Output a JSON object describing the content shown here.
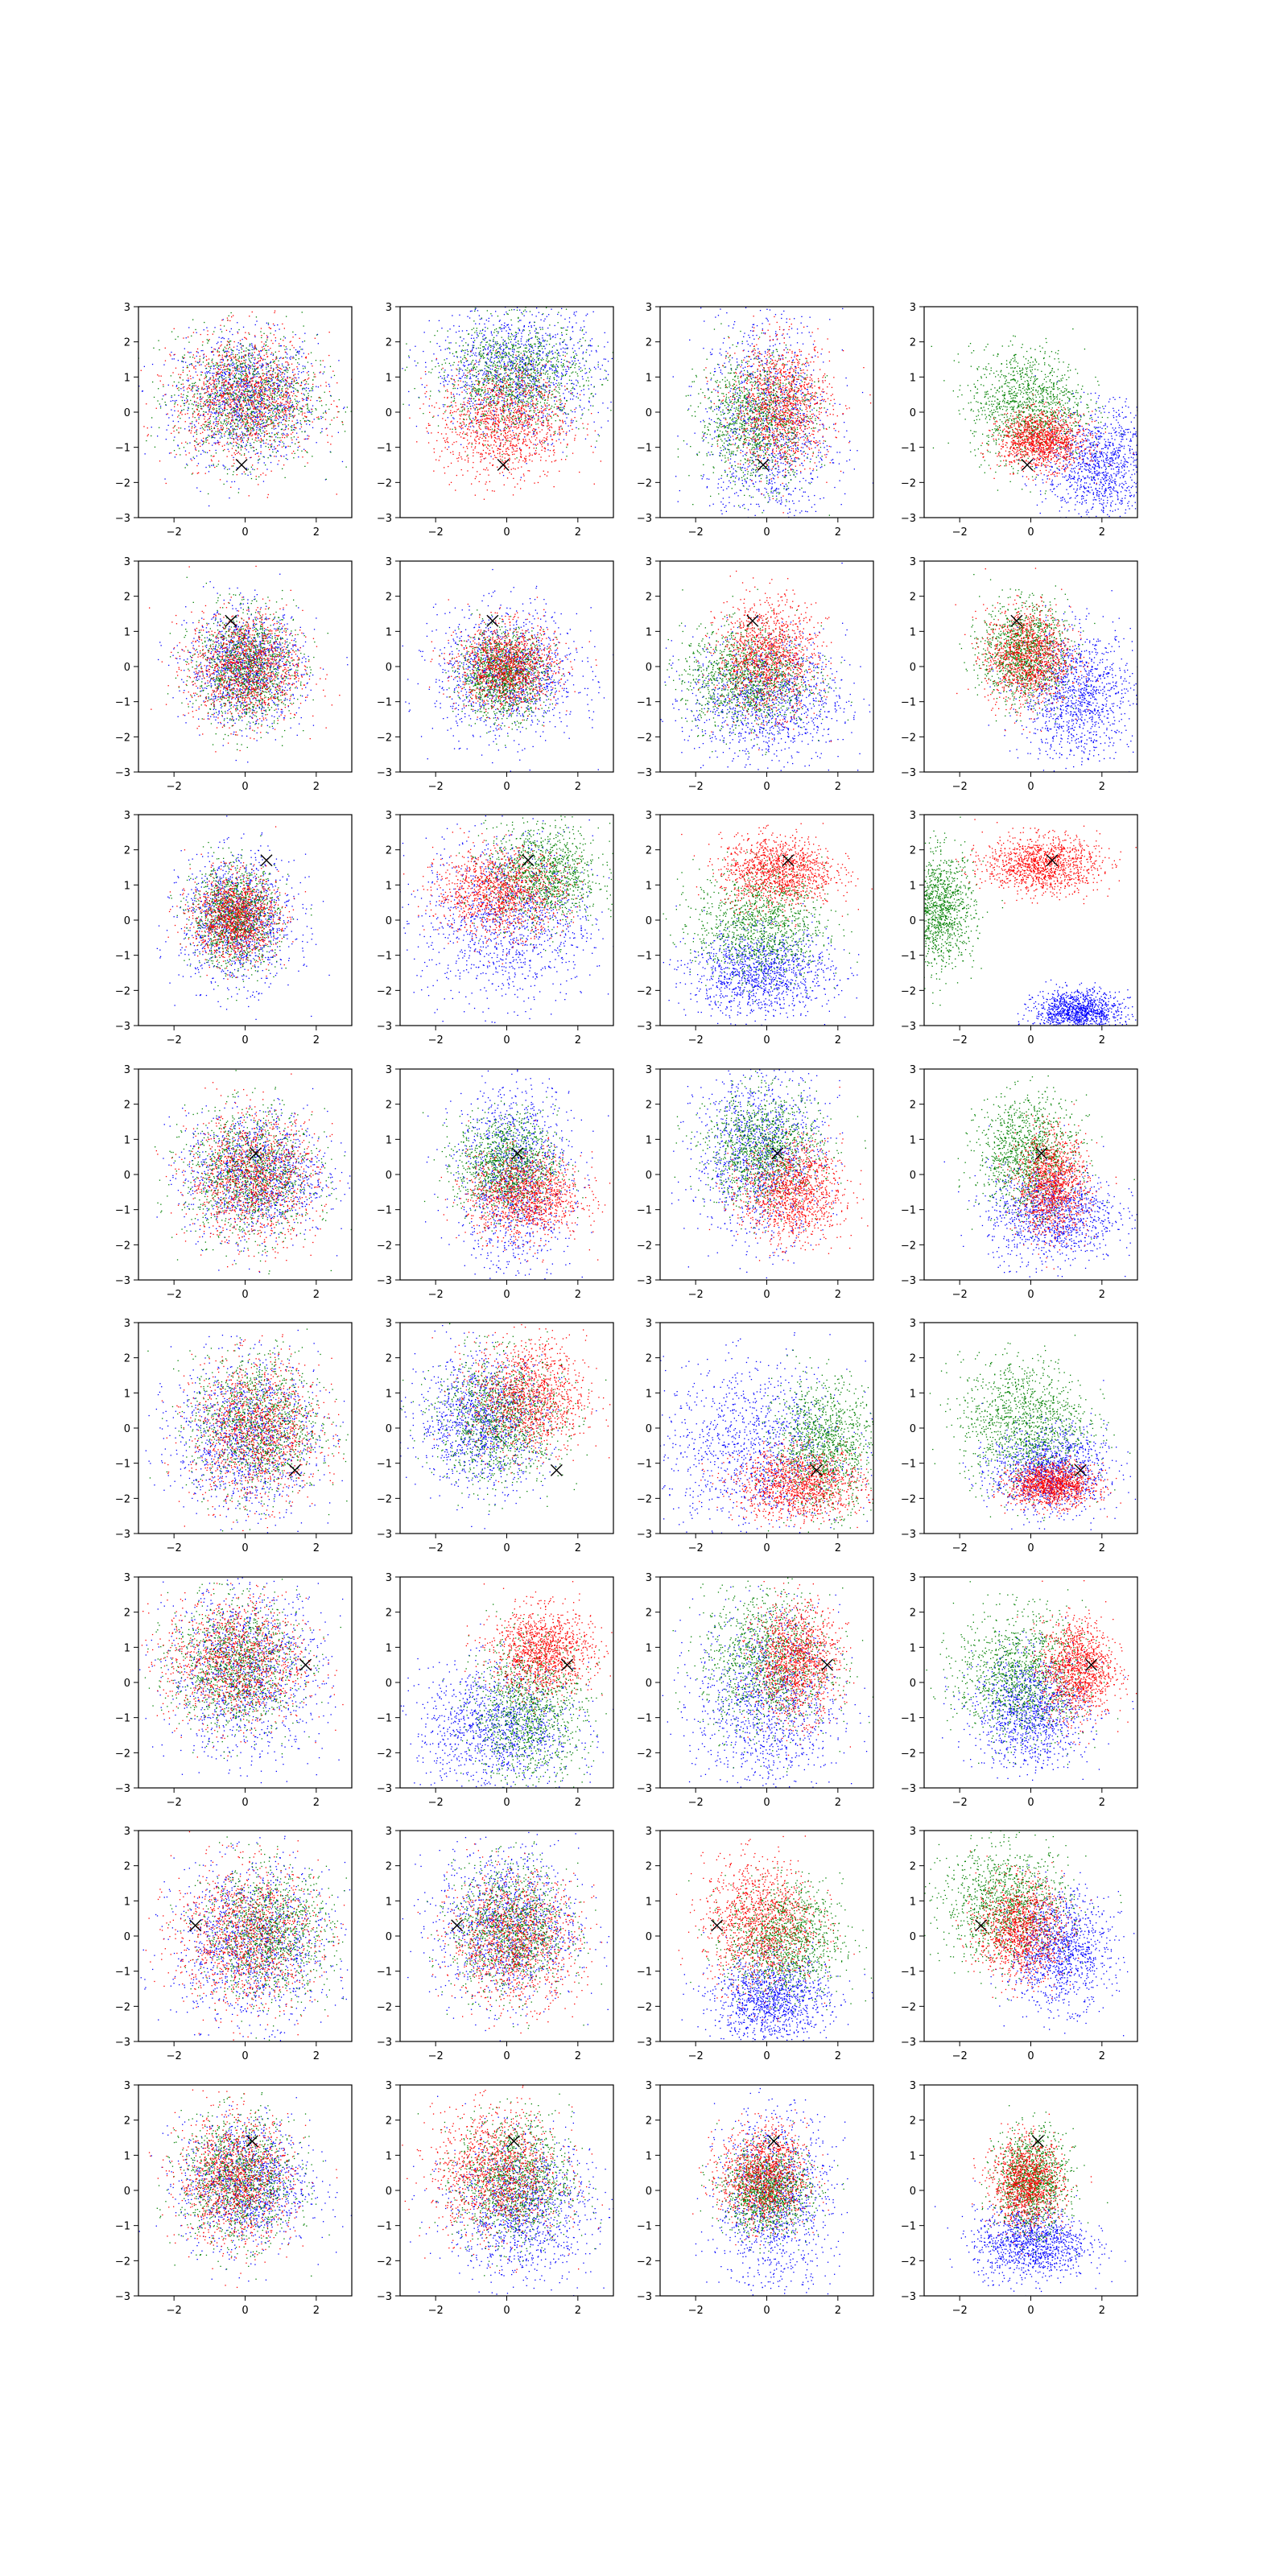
{
  "chart_data": {
    "type": "scatter",
    "layout": {
      "rows": 8,
      "cols": 4
    },
    "xlim": [
      -3,
      3
    ],
    "ylim": [
      -3,
      3
    ],
    "x_ticks": [
      -2,
      0,
      2
    ],
    "y_ticks": [
      -3,
      -2,
      -1,
      0,
      1,
      2,
      3
    ],
    "x_tick_labels": [
      "−2",
      "0",
      "2"
    ],
    "y_tick_labels": [
      "−3",
      "−2",
      "−1",
      "0",
      "1",
      "2",
      "3"
    ],
    "grid": false,
    "legend": "none",
    "series_colors": {
      "blue": "#0000ff",
      "green": "#008000",
      "red": "#ff0000"
    },
    "marker_symbol": "×",
    "points_per_series": 1200,
    "rows": [
      {
        "marker": [
          -0.1,
          -1.5
        ],
        "panels": [
          {
            "blue": [
              0.0,
              0.4,
              1.0,
              0.9
            ],
            "green": [
              0.0,
              0.4,
              1.0,
              0.9
            ],
            "red": [
              0.0,
              0.4,
              1.0,
              0.9
            ]
          },
          {
            "blue": [
              0.3,
              1.2,
              1.2,
              0.9
            ],
            "green": [
              0.2,
              1.0,
              1.0,
              0.8
            ],
            "red": [
              -0.1,
              -0.3,
              0.9,
              0.8
            ]
          },
          {
            "blue": [
              0.0,
              -0.4,
              0.9,
              1.6
            ],
            "green": [
              -0.3,
              -0.2,
              0.8,
              0.9
            ],
            "red": [
              0.4,
              0.2,
              0.7,
              0.9
            ]
          },
          {
            "blue": [
              2.0,
              -1.5,
              0.8,
              0.8
            ],
            "green": [
              -0.1,
              0.2,
              0.8,
              0.8
            ],
            "red": [
              0.3,
              -0.8,
              0.6,
              0.4
            ]
          }
        ]
      },
      {
        "marker": [
          -0.4,
          1.3
        ],
        "panels": [
          {
            "blue": [
              0.0,
              0.0,
              0.8,
              0.8
            ],
            "green": [
              0.0,
              0.0,
              0.7,
              0.8
            ],
            "red": [
              0.0,
              0.0,
              0.8,
              0.8
            ]
          },
          {
            "blue": [
              0.0,
              -0.2,
              1.0,
              0.9
            ],
            "green": [
              -0.1,
              -0.2,
              0.6,
              0.6
            ],
            "red": [
              0.0,
              0.0,
              0.7,
              0.6
            ]
          },
          {
            "blue": [
              0.0,
              -0.9,
              1.1,
              0.9
            ],
            "green": [
              -0.6,
              -0.3,
              0.9,
              0.7
            ],
            "red": [
              0.0,
              0.3,
              0.7,
              0.8
            ]
          },
          {
            "blue": [
              1.3,
              -0.8,
              0.8,
              0.9
            ],
            "green": [
              -0.2,
              0.4,
              0.6,
              0.7
            ],
            "red": [
              -0.1,
              0.3,
              0.6,
              0.7
            ]
          }
        ]
      },
      {
        "marker": [
          0.6,
          1.7
        ],
        "panels": [
          {
            "blue": [
              -0.2,
              0.0,
              0.8,
              0.9
            ],
            "green": [
              -0.3,
              0.1,
              0.6,
              0.7
            ],
            "red": [
              -0.3,
              0.1,
              0.6,
              0.6
            ]
          },
          {
            "blue": [
              0.0,
              0.0,
              1.2,
              1.2
            ],
            "green": [
              1.0,
              1.3,
              0.8,
              0.7
            ],
            "red": [
              -0.2,
              0.8,
              0.9,
              0.6
            ]
          },
          {
            "blue": [
              -0.2,
              -1.5,
              1.0,
              0.6
            ],
            "green": [
              -0.2,
              -0.1,
              0.9,
              0.8
            ],
            "red": [
              0.3,
              1.4,
              0.8,
              0.5
            ]
          },
          {
            "blue": [
              1.3,
              -2.6,
              0.6,
              0.3
            ],
            "green": [
              -2.6,
              0.3,
              0.5,
              0.8
            ],
            "red": [
              0.3,
              1.6,
              0.8,
              0.4
            ]
          }
        ]
      },
      {
        "marker": [
          0.3,
          0.6
        ],
        "panels": [
          {
            "blue": [
              0.3,
              0.0,
              1.0,
              0.9
            ],
            "green": [
              0.1,
              0.0,
              0.9,
              0.9
            ],
            "red": [
              0.2,
              -0.1,
              0.9,
              0.9
            ]
          },
          {
            "blue": [
              0.2,
              0.0,
              0.8,
              1.4
            ],
            "green": [
              0.0,
              0.3,
              0.7,
              0.7
            ],
            "red": [
              0.5,
              -0.6,
              0.8,
              0.6
            ]
          },
          {
            "blue": [
              -0.2,
              0.6,
              0.9,
              1.2
            ],
            "green": [
              -0.1,
              0.7,
              0.8,
              0.8
            ],
            "red": [
              0.7,
              -0.5,
              0.7,
              0.7
            ]
          },
          {
            "blue": [
              0.6,
              -1.1,
              0.9,
              0.7
            ],
            "green": [
              -0.1,
              0.6,
              0.7,
              0.8
            ],
            "red": [
              0.6,
              -0.3,
              0.5,
              0.7
            ]
          }
        ]
      },
      {
        "marker": [
          1.4,
          -1.2
        ],
        "panels": [
          {
            "blue": [
              0.0,
              -0.2,
              1.0,
              1.1
            ],
            "green": [
              0.3,
              0.1,
              0.9,
              1.0
            ],
            "red": [
              0.3,
              -0.1,
              0.9,
              1.0
            ]
          },
          {
            "blue": [
              -0.7,
              0.2,
              0.9,
              0.9
            ],
            "green": [
              -0.2,
              0.3,
              0.9,
              0.9
            ],
            "red": [
              0.6,
              0.9,
              0.8,
              0.8
            ]
          },
          {
            "blue": [
              -0.3,
              -0.6,
              1.3,
              1.2
            ],
            "green": [
              1.6,
              -0.5,
              0.7,
              0.9
            ],
            "red": [
              0.9,
              -1.6,
              0.9,
              0.5
            ]
          },
          {
            "blue": [
              0.5,
              -1.2,
              0.8,
              0.6
            ],
            "green": [
              -0.2,
              0.2,
              0.9,
              0.9
            ],
            "red": [
              0.6,
              -1.6,
              0.6,
              0.3
            ]
          }
        ]
      },
      {
        "marker": [
          1.7,
          0.5
        ],
        "panels": [
          {
            "blue": [
              0.0,
              0.3,
              1.1,
              1.2
            ],
            "green": [
              -0.3,
              0.5,
              0.9,
              0.9
            ],
            "red": [
              -0.3,
              0.6,
              1.0,
              0.9
            ]
          },
          {
            "blue": [
              -0.3,
              -1.3,
              1.1,
              0.9
            ],
            "green": [
              0.6,
              -0.8,
              0.8,
              1.0
            ],
            "red": [
              1.0,
              0.9,
              0.7,
              0.6
            ]
          },
          {
            "blue": [
              0.0,
              -0.6,
              1.0,
              1.3
            ],
            "green": [
              0.0,
              0.6,
              0.9,
              1.0
            ],
            "red": [
              0.8,
              0.6,
              0.6,
              0.8
            ]
          },
          {
            "blue": [
              0.0,
              -0.8,
              0.8,
              0.8
            ],
            "green": [
              -0.3,
              0.2,
              0.9,
              0.9
            ],
            "red": [
              1.3,
              0.4,
              0.5,
              0.7
            ]
          }
        ]
      },
      {
        "marker": [
          -1.4,
          0.3
        ],
        "panels": [
          {
            "blue": [
              0.2,
              -0.2,
              1.1,
              1.1
            ],
            "green": [
              0.6,
              0.1,
              0.9,
              0.9
            ],
            "red": [
              0.0,
              0.0,
              1.0,
              1.0
            ]
          },
          {
            "blue": [
              0.0,
              0.3,
              1.0,
              1.1
            ],
            "green": [
              0.1,
              0.2,
              0.8,
              0.9
            ],
            "red": [
              0.2,
              -0.1,
              0.9,
              0.9
            ]
          },
          {
            "blue": [
              0.1,
              -1.8,
              0.8,
              0.6
            ],
            "green": [
              0.5,
              -0.1,
              0.8,
              0.8
            ],
            "red": [
              -0.2,
              0.4,
              0.8,
              0.9
            ]
          },
          {
            "blue": [
              0.8,
              -0.4,
              0.7,
              0.8
            ],
            "green": [
              -0.7,
              0.9,
              0.9,
              0.8
            ],
            "red": [
              -0.3,
              0.2,
              0.6,
              0.7
            ]
          }
        ]
      },
      {
        "marker": [
          0.2,
          1.4
        ],
        "panels": [
          {
            "blue": [
              0.0,
              0.2,
              0.9,
              0.9
            ],
            "green": [
              -0.2,
              0.3,
              0.8,
              0.9
            ],
            "red": [
              -0.3,
              0.3,
              0.8,
              0.9
            ]
          },
          {
            "blue": [
              0.4,
              -0.5,
              1.0,
              1.0
            ],
            "green": [
              0.2,
              0.3,
              0.8,
              0.9
            ],
            "red": [
              -0.3,
              0.5,
              0.9,
              0.9
            ]
          },
          {
            "blue": [
              0.2,
              -0.3,
              0.8,
              1.3
            ],
            "green": [
              0.0,
              0.0,
              0.6,
              0.6
            ],
            "red": [
              -0.1,
              0.4,
              0.6,
              0.7
            ]
          },
          {
            "blue": [
              0.0,
              -1.5,
              0.8,
              0.5
            ],
            "green": [
              0.0,
              0.3,
              0.5,
              0.7
            ],
            "red": [
              -0.1,
              0.2,
              0.5,
              0.6
            ]
          }
        ]
      }
    ]
  }
}
